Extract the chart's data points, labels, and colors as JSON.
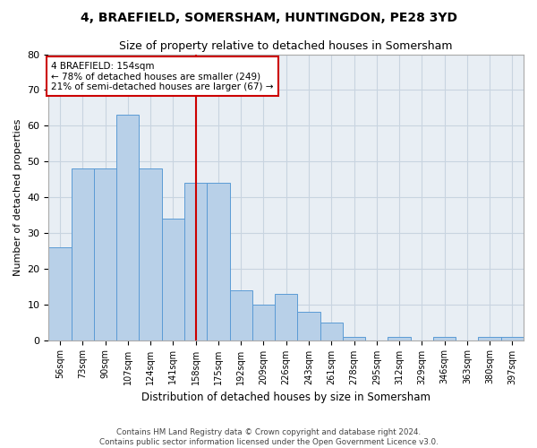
{
  "title1": "4, BRAEFIELD, SOMERSHAM, HUNTINGDON, PE28 3YD",
  "title2": "Size of property relative to detached houses in Somersham",
  "xlabel": "Distribution of detached houses by size in Somersham",
  "ylabel": "Number of detached properties",
  "categories": [
    "56sqm",
    "73sqm",
    "90sqm",
    "107sqm",
    "124sqm",
    "141sqm",
    "158sqm",
    "175sqm",
    "192sqm",
    "209sqm",
    "226sqm",
    "243sqm",
    "261sqm",
    "278sqm",
    "295sqm",
    "312sqm",
    "329sqm",
    "346sqm",
    "363sqm",
    "380sqm",
    "397sqm"
  ],
  "values": [
    26,
    48,
    48,
    63,
    48,
    34,
    44,
    44,
    14,
    10,
    13,
    8,
    5,
    1,
    0,
    1,
    0,
    1,
    0,
    1,
    1
  ],
  "bar_color": "#b8d0e8",
  "bar_edge_color": "#5b9bd5",
  "annotation_label": "4 BRAEFIELD: 154sqm",
  "annotation_line1": "← 78% of detached houses are smaller (249)",
  "annotation_line2": "21% of semi-detached houses are larger (67) →",
  "annotation_box_color": "#ffffff",
  "annotation_box_edge": "#cc0000",
  "vline_color": "#cc0000",
  "vline_x_index": 6,
  "ylim": [
    0,
    80
  ],
  "yticks": [
    0,
    10,
    20,
    30,
    40,
    50,
    60,
    70,
    80
  ],
  "grid_color": "#c8d4e0",
  "bg_color": "#e8eef4",
  "footer1": "Contains HM Land Registry data © Crown copyright and database right 2024.",
  "footer2": "Contains public sector information licensed under the Open Government Licence v3.0."
}
